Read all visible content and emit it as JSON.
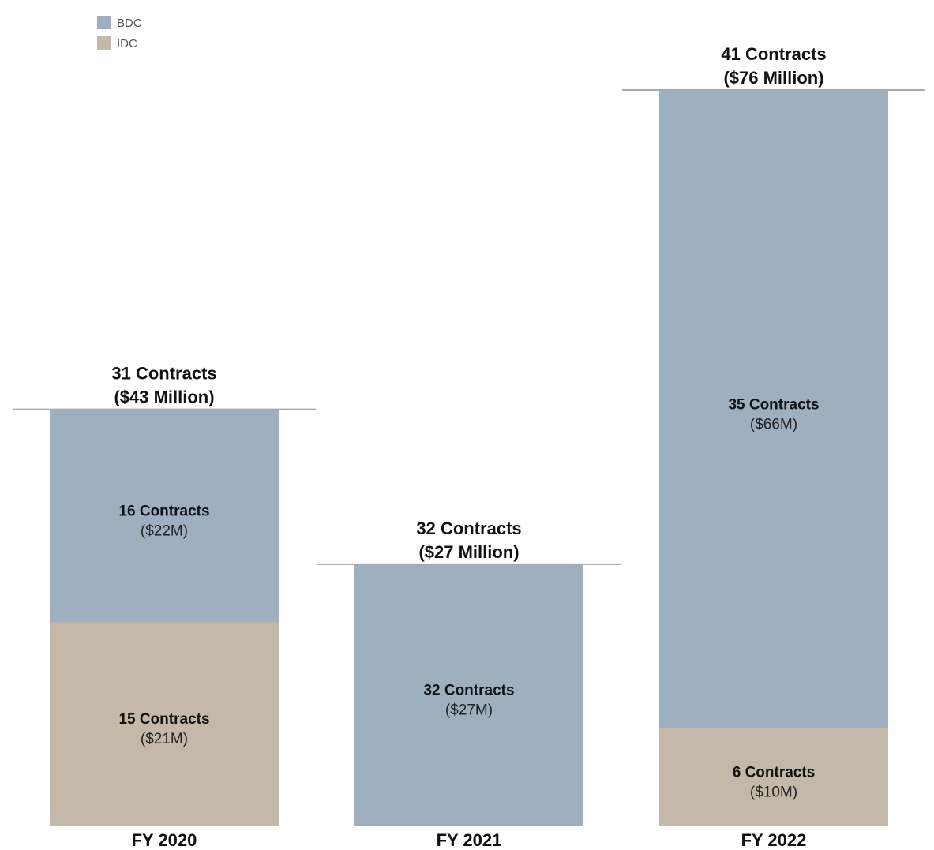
{
  "chart_data": {
    "type": "bar",
    "stacked": true,
    "categories": [
      "FY 2020",
      "FY 2021",
      "FY 2022"
    ],
    "series": [
      {
        "name": "BDC",
        "color": "#9eafbf",
        "values": [
          22,
          27,
          66
        ],
        "contracts": [
          16,
          32,
          35
        ],
        "contract_labels": [
          "16 Contracts",
          "32 Contracts",
          "35 Contracts"
        ],
        "amount_labels": [
          "($22M)",
          "($27M)",
          "($66M)"
        ]
      },
      {
        "name": "IDC",
        "color": "#c4b8a8",
        "values": [
          21,
          0,
          10
        ],
        "contracts": [
          15,
          0,
          6
        ],
        "contract_labels": [
          "15 Contracts",
          "",
          "6 Contracts"
        ],
        "amount_labels": [
          "($21M)",
          "",
          "($10M)"
        ]
      }
    ],
    "totals": [
      {
        "value": 43,
        "contracts": 31,
        "line1": "31 Contracts",
        "line2": "($43 Million)"
      },
      {
        "value": 27,
        "contracts": 32,
        "line1": "32 Contracts",
        "line2": "($27 Million)"
      },
      {
        "value": 76,
        "contracts": 41,
        "line1": "41 Contracts",
        "line2": "($76 Million)"
      }
    ],
    "legend": [
      "BDC",
      "IDC"
    ],
    "legend_position": "top-left",
    "grid": false,
    "title": "",
    "xlabel": "",
    "ylabel": "",
    "ylim": [
      0,
      76
    ]
  }
}
